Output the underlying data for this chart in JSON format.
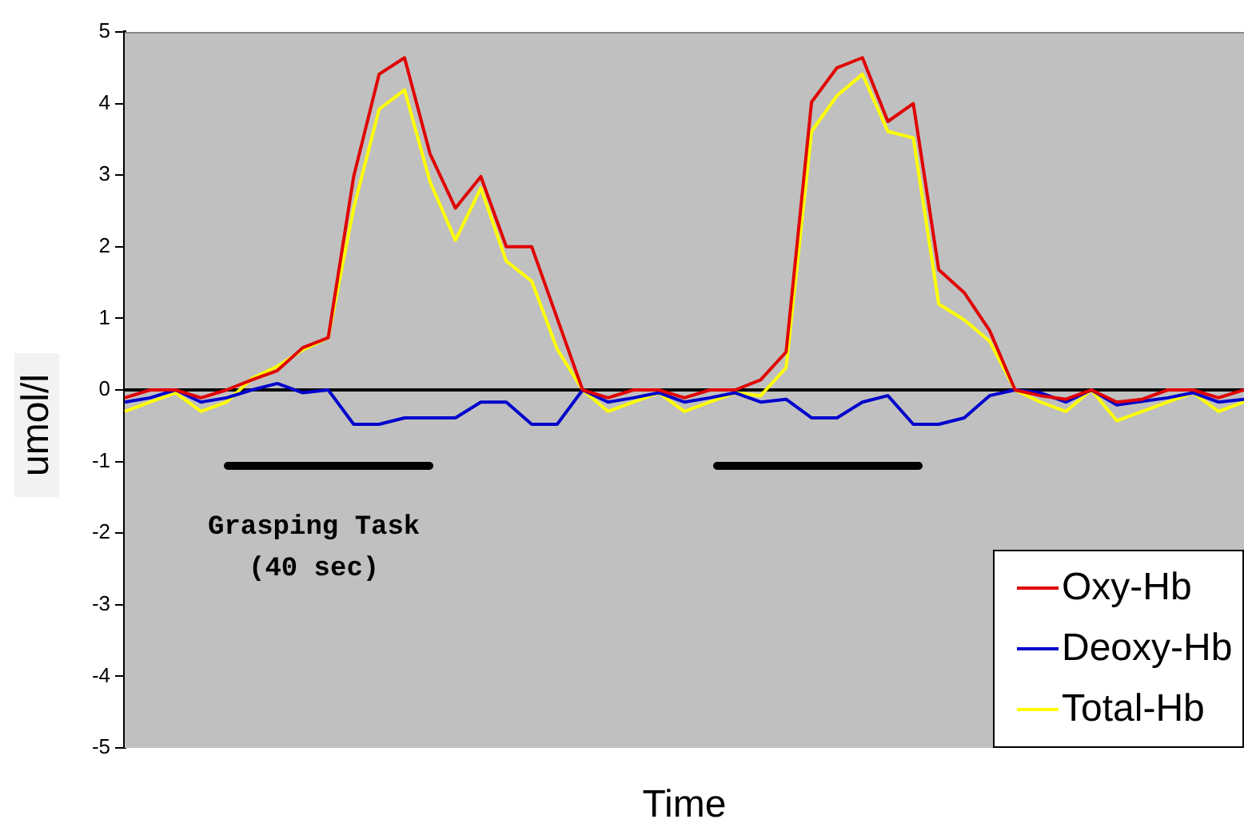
{
  "chart_data": {
    "type": "line",
    "xlabel": "Time",
    "ylabel": "umol/l",
    "categories": [
      null,
      null,
      null,
      null,
      null,
      null,
      null,
      null,
      null,
      null,
      null,
      null,
      null,
      null,
      null,
      null,
      null,
      null,
      null,
      null,
      null,
      null,
      null,
      null,
      null,
      null,
      null,
      null,
      null,
      null,
      null,
      null,
      null,
      null,
      null,
      null,
      null,
      null,
      null,
      null,
      null,
      null,
      null,
      null,
      null
    ],
    "series": [
      {
        "name": "Oxy-Hb",
        "color": "#e00000",
        "values": [
          -0.11,
          0,
          0,
          -0.11,
          0,
          0.14,
          0.27,
          0.59,
          0.73,
          2.98,
          4.41,
          4.64,
          3.3,
          2.54,
          2.98,
          2.0,
          2.0,
          1.0,
          0,
          -0.11,
          0,
          0,
          -0.11,
          0,
          0,
          0.14,
          0.53,
          4.02,
          4.5,
          4.64,
          3.75,
          4.0,
          1.68,
          1.36,
          0.83,
          0,
          -0.08,
          -0.13,
          0,
          -0.17,
          -0.13,
          0,
          0,
          -0.11,
          0
        ]
      },
      {
        "name": "Deoxy-Hb",
        "color": "#0000cc",
        "values": [
          -0.17,
          -0.11,
          0,
          -0.17,
          -0.11,
          0,
          0.09,
          -0.04,
          0,
          -0.48,
          -0.48,
          -0.39,
          -0.39,
          -0.39,
          -0.17,
          -0.17,
          -0.48,
          -0.48,
          0,
          -0.17,
          -0.11,
          -0.04,
          -0.17,
          -0.11,
          -0.04,
          -0.17,
          -0.13,
          -0.39,
          -0.39,
          -0.17,
          -0.08,
          -0.48,
          -0.48,
          -0.39,
          -0.08,
          0,
          -0.04,
          -0.17,
          0,
          -0.21,
          -0.16,
          -0.11,
          -0.04,
          -0.17,
          -0.13
        ]
      },
      {
        "name": "Total-Hb",
        "color": "#ffff00",
        "values": [
          -0.3,
          -0.17,
          -0.04,
          -0.3,
          -0.17,
          0.16,
          0.33,
          0.56,
          0.73,
          2.54,
          3.92,
          4.19,
          2.91,
          2.09,
          2.82,
          1.8,
          1.52,
          0.57,
          0,
          -0.3,
          -0.17,
          -0.04,
          -0.3,
          -0.17,
          -0.04,
          -0.08,
          0.31,
          3.61,
          4.11,
          4.41,
          3.61,
          3.52,
          1.2,
          0.98,
          0.68,
          0,
          -0.17,
          -0.3,
          0,
          -0.43,
          -0.3,
          -0.17,
          -0.04,
          -0.3,
          -0.17
        ]
      }
    ],
    "ylim": [
      -5,
      5
    ],
    "yticks": [
      -5,
      -4,
      -3,
      -2,
      -1,
      0,
      1,
      2,
      3,
      4,
      5
    ],
    "grid": false,
    "legend": "bottom right",
    "tick_labels": "y",
    "marker": "none",
    "line_style": "solid",
    "ref_lines": [
      {
        "axis": "y",
        "value": 0,
        "color": "#000000"
      }
    ],
    "annotations": [
      "Grasping Task\n(40 sec)"
    ]
  }
}
